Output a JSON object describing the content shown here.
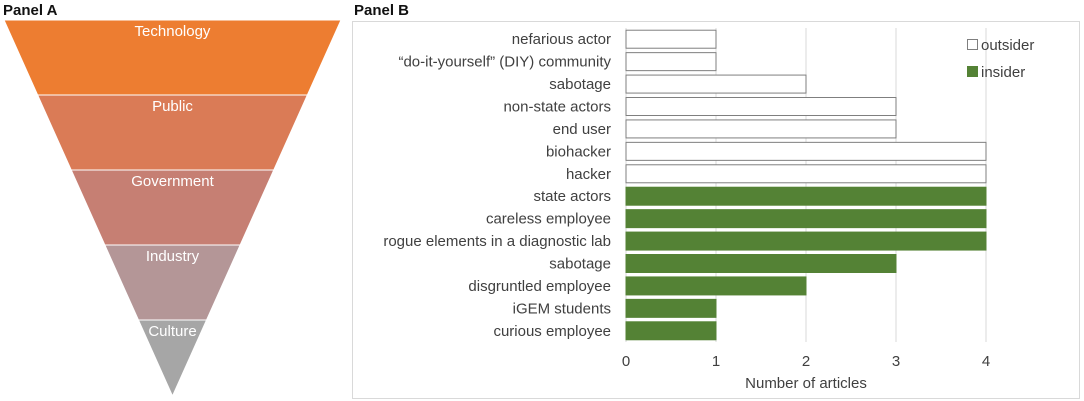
{
  "panel_a": {
    "label": "Panel A",
    "levels": [
      {
        "name": "Technology",
        "color": "#ED7D31"
      },
      {
        "name": "Public",
        "color": "#DA7B56"
      },
      {
        "name": "Government",
        "color": "#C67F73"
      },
      {
        "name": "Industry",
        "color": "#B49697"
      },
      {
        "name": "Culture",
        "color": "#A6A6A6"
      }
    ]
  },
  "panel_b": {
    "label": "Panel B"
  },
  "chart_data": {
    "type": "bar",
    "orientation": "horizontal",
    "categories": [
      "nefarious actor",
      "“do-it-yourself” (DIY) community",
      "sabotage",
      "non-state actors",
      "end user",
      "biohacker",
      "hacker",
      "state actors",
      "careless employee",
      "rogue elements in a diagnostic lab",
      "sabotage ",
      "disgruntled employee",
      "iGEM students",
      "curious employee"
    ],
    "values": [
      1,
      1,
      2,
      3,
      3,
      4,
      4,
      4,
      4,
      4,
      3,
      2,
      1,
      1
    ],
    "groups": [
      "outsider",
      "outsider",
      "outsider",
      "outsider",
      "outsider",
      "outsider",
      "outsider",
      "insider",
      "insider",
      "insider",
      "insider",
      "insider",
      "insider",
      "insider"
    ],
    "series": [
      {
        "name": "outsider",
        "color": "#FFFFFF",
        "stroke": "#7F7F7F"
      },
      {
        "name": "insider",
        "color": "#548235",
        "stroke": "#548235"
      }
    ],
    "xlabel": "Number of articles",
    "ylabel": "",
    "xlim": [
      0,
      4
    ],
    "xticks": [
      0,
      1,
      2,
      3,
      4
    ],
    "grid": true,
    "legend_position": "top-right"
  }
}
